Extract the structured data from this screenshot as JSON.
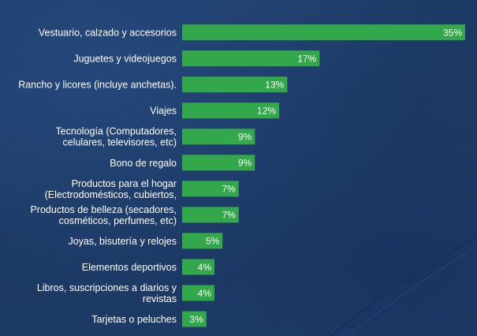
{
  "chart_data": {
    "type": "bar",
    "orientation": "horizontal",
    "title": "",
    "xlabel": "",
    "ylabel": "",
    "xlim": [
      0,
      35
    ],
    "grid": false,
    "legend": "none",
    "colors": {
      "bar": "#33a84a",
      "background": "#1d3a66",
      "text": "#ffffff"
    },
    "categories": [
      [
        "Vestuario, calzado y accesorios"
      ],
      [
        "Juguetes y videojuegos"
      ],
      [
        "Rancho y licores (incluye anchetas)."
      ],
      [
        "Viajes"
      ],
      [
        "Tecnología (Computadores,",
        "celulares, televisores, etc)"
      ],
      [
        "Bono de regalo"
      ],
      [
        "Productos para el hogar",
        "(Electrodomésticos, cubiertos,"
      ],
      [
        "Productos de belleza (secadores,",
        "cosméticos, perfumes, etc)"
      ],
      [
        "Joyas, bisutería y relojes"
      ],
      [
        "Elementos deportivos"
      ],
      [
        "Libros, suscripciones a diarios y",
        "revistas"
      ],
      [
        "Tarjetas o peluches"
      ]
    ],
    "values": [
      35,
      17,
      13,
      12,
      9,
      9,
      7,
      7,
      5,
      4,
      4,
      3
    ],
    "value_labels": [
      "35%",
      "17%",
      "13%",
      "12%",
      "9%",
      "9%",
      "7%",
      "7%",
      "5%",
      "4%",
      "4%",
      "3%"
    ]
  }
}
